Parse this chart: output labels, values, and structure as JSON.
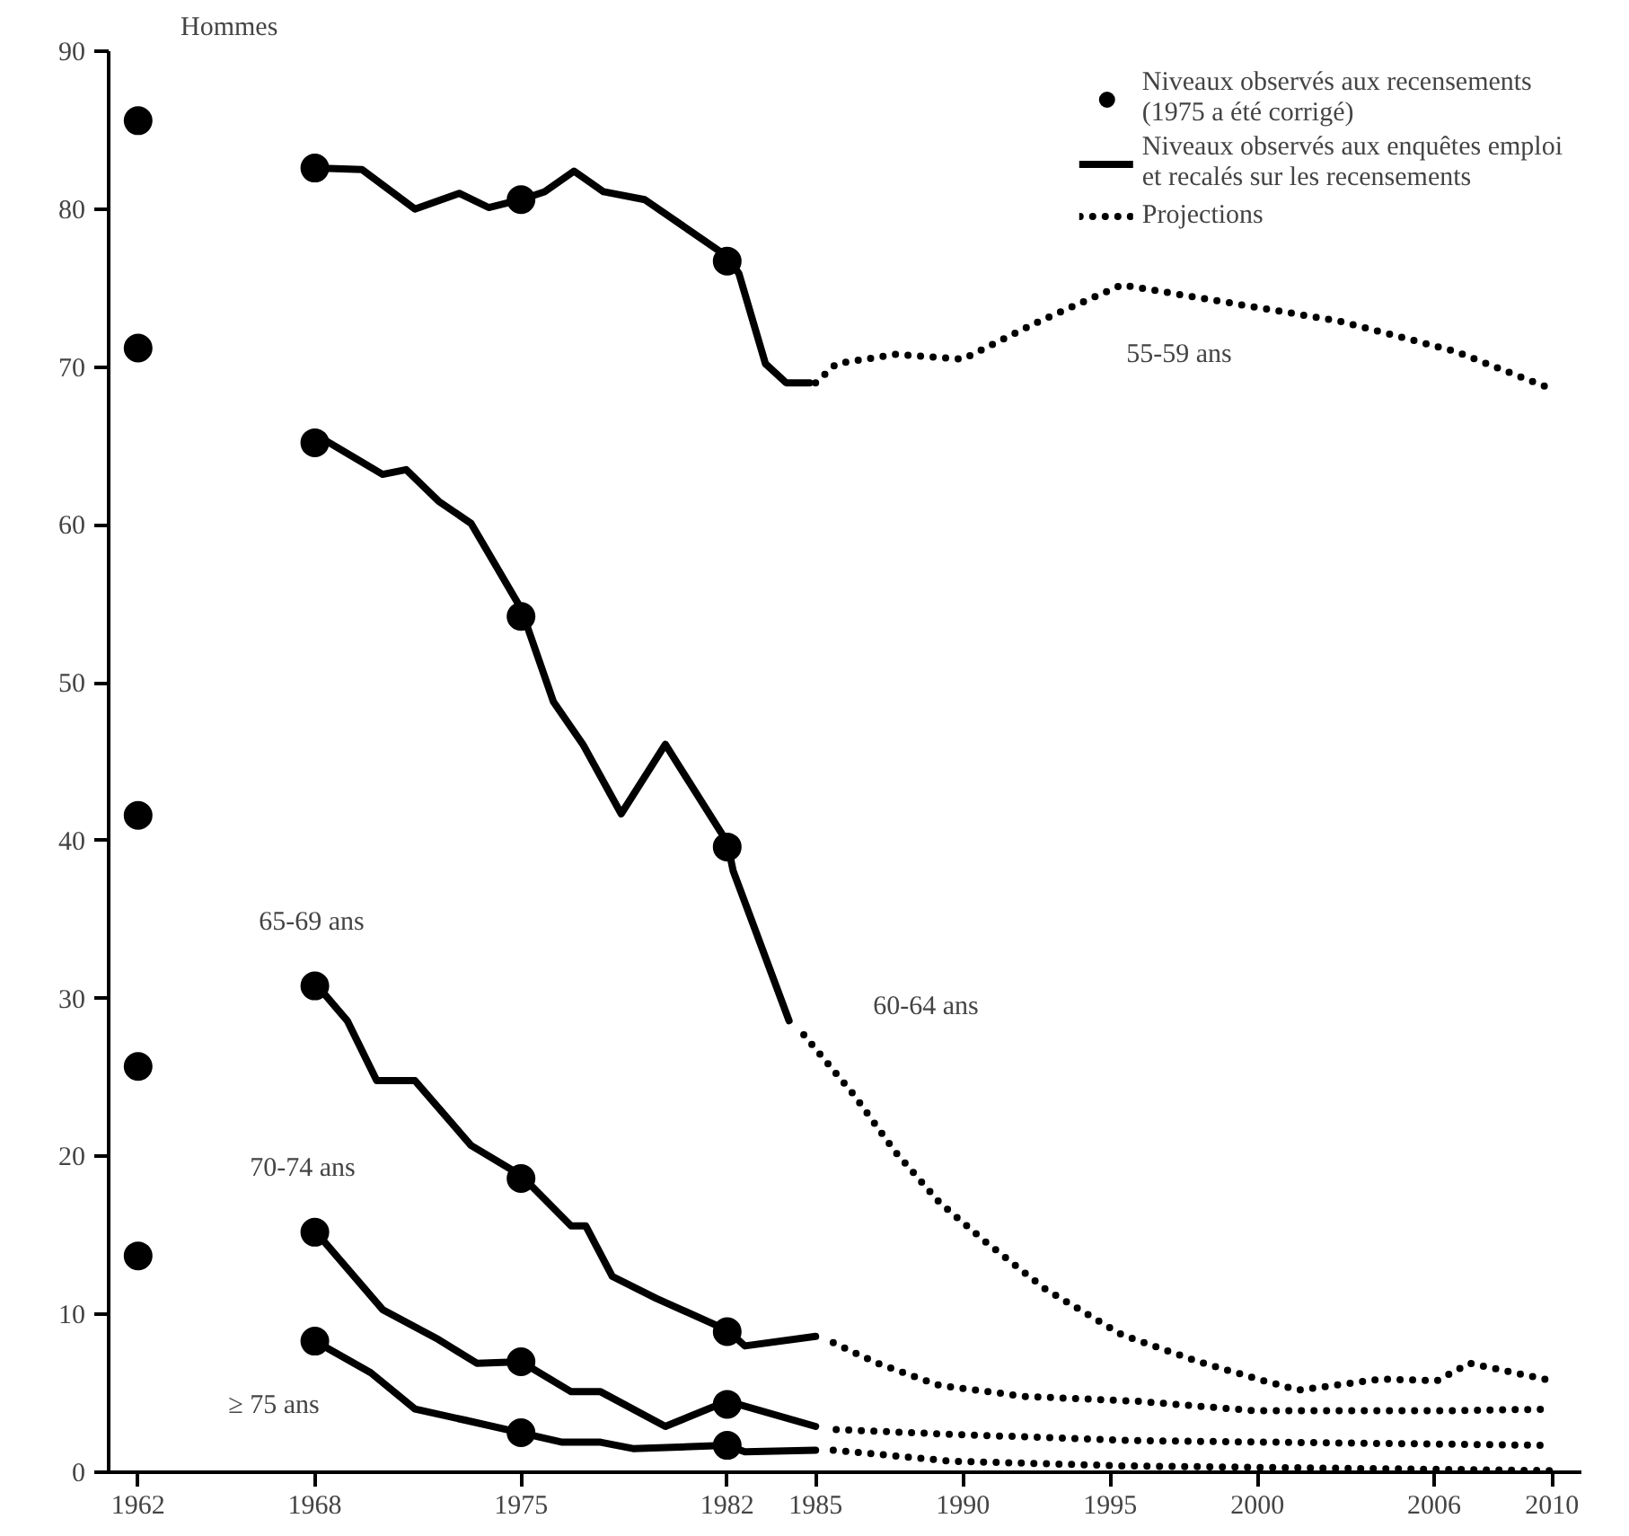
{
  "chart_data": {
    "type": "line",
    "title": "Hommes",
    "xlim": [
      1961,
      2011
    ],
    "ylim": [
      0,
      90
    ],
    "xticks": [
      1962,
      1968,
      1975,
      1982,
      1985,
      1990,
      1995,
      2000,
      2006,
      2010
    ],
    "yticks": [
      0,
      10,
      20,
      30,
      40,
      50,
      60,
      70,
      80,
      90
    ],
    "grid": false,
    "legend": "top right",
    "series": [
      {
        "name": "Niveaux observés aux recensements\n(1975 a été corrigé)",
        "type": "scatter",
        "marker": "circle",
        "color": "#000000",
        "x": [
          1962,
          1962,
          1962,
          1962,
          1962,
          1968,
          1968,
          1968,
          1968,
          1968,
          1975,
          1975,
          1975,
          1975,
          1975,
          1982,
          1982,
          1982,
          1982,
          1982
        ],
        "values": [
          85.6,
          71.2,
          41.6,
          25.7,
          13.7,
          82.6,
          65.2,
          30.8,
          15.2,
          8.3,
          80.6,
          54.2,
          18.6,
          7.0,
          2.5,
          76.7,
          39.6,
          8.9,
          4.3,
          1.7
        ]
      },
      {
        "name": "Niveaux observés aux enquêtes emploi\net recalés sur les recensements",
        "type": "line",
        "line_style": "solid",
        "color": "#000000",
        "x": [
          1968,
          1969.6,
          1971.4,
          1972.9,
          1973.9,
          1975,
          1975.8,
          1976.8,
          1977.8,
          1979.2,
          1982,
          1982.4,
          1983.3,
          1984,
          1984.8
        ],
        "values": [
          82.6,
          82.5,
          80.0,
          81.0,
          80.1,
          80.6,
          81.1,
          82.4,
          81.1,
          80.6,
          77.0,
          75.9,
          70.2,
          69.0,
          69.0
        ]
      },
      {
        "type": "line",
        "line_style": "solid",
        "color": "#000000",
        "x": [
          1968,
          1968.4,
          1970.3,
          1971.1,
          1972.2,
          1973.3,
          1975,
          1976.1,
          1977.1,
          1978.4,
          1979.9,
          1982,
          1982.2,
          1984.1
        ],
        "values": [
          65.3,
          65.3,
          63.2,
          63.5,
          61.5,
          60.1,
          54.7,
          48.8,
          46.1,
          41.7,
          46.1,
          39.9,
          38.1,
          28.6
        ]
      },
      {
        "type": "line",
        "line_style": "solid",
        "color": "#000000",
        "x": [
          1968,
          1969.1,
          1970.1,
          1971.4,
          1973.3,
          1975,
          1976.7,
          1977.2,
          1978.1,
          1979.6,
          1982,
          1982.6,
          1985
        ],
        "values": [
          31.0,
          28.6,
          24.8,
          24.8,
          20.7,
          18.8,
          15.6,
          15.6,
          12.4,
          11.0,
          9.0,
          8.0,
          8.6
        ]
      },
      {
        "type": "line",
        "line_style": "solid",
        "color": "#000000",
        "x": [
          1968,
          1970.3,
          1972.2,
          1973.5,
          1975,
          1976.7,
          1977.7,
          1979.9,
          1982,
          1985
        ],
        "values": [
          15.3,
          10.3,
          8.4,
          6.9,
          7.0,
          5.1,
          5.1,
          2.9,
          4.5,
          2.9
        ]
      },
      {
        "type": "line",
        "line_style": "solid",
        "color": "#000000",
        "x": [
          1968,
          1969.9,
          1971.4,
          1973.1,
          1975,
          1976.4,
          1977.7,
          1978.8,
          1982,
          1982.6,
          1985
        ],
        "values": [
          8.3,
          6.3,
          4.0,
          3.3,
          2.5,
          1.9,
          1.9,
          1.5,
          1.7,
          1.3,
          1.4
        ]
      },
      {
        "name": "Projections",
        "type": "line",
        "line_style": "dotted",
        "color": "#000000",
        "x": [
          1985,
          1985.7,
          1987.7,
          1990,
          1992.6,
          1995.4,
          1999.9,
          2002.8,
          2006.7,
          2010
        ],
        "values": [
          69.0,
          70.2,
          70.8,
          70.5,
          72.9,
          75.2,
          73.8,
          72.9,
          71.0,
          68.6
        ]
      },
      {
        "type": "line",
        "line_style": "dotted",
        "color": "#000000",
        "x": [
          1984.6,
          1986.3,
          1987.7,
          1989.2,
          1990.7,
          1992.8,
          1995.4,
          1998,
          2000.2,
          2001.4,
          2004.2,
          2006.1,
          2007.2,
          2010
        ],
        "values": [
          27.7,
          23.9,
          20.3,
          17.1,
          14.7,
          11.6,
          8.7,
          7.0,
          5.8,
          5.2,
          5.9,
          5.8,
          6.9,
          5.8
        ]
      },
      {
        "type": "line",
        "line_style": "dotted",
        "color": "#000000",
        "x": [
          1985.6,
          1987.1,
          1989.2,
          1992.1,
          1995.9,
          1999.9,
          2004.4,
          2006.7,
          2010
        ],
        "values": [
          8.2,
          6.9,
          5.5,
          4.8,
          4.5,
          3.9,
          3.9,
          3.9,
          4.0
        ]
      },
      {
        "type": "line",
        "line_style": "dotted",
        "color": "#000000",
        "x": [
          1985.7,
          1989.6,
          1995.9,
          2010
        ],
        "values": [
          2.7,
          2.4,
          2.0,
          1.7
        ]
      },
      {
        "type": "line",
        "line_style": "dotted",
        "color": "#000000",
        "x": [
          1985.6,
          1989.6,
          1995.5,
          2010
        ],
        "values": [
          1.4,
          0.7,
          0.4,
          0.1
        ]
      }
    ],
    "annotations": [
      "55-59 ans",
      "60-64 ans",
      "65-69 ans",
      "70-74 ans",
      "≥ 75 ans"
    ]
  }
}
